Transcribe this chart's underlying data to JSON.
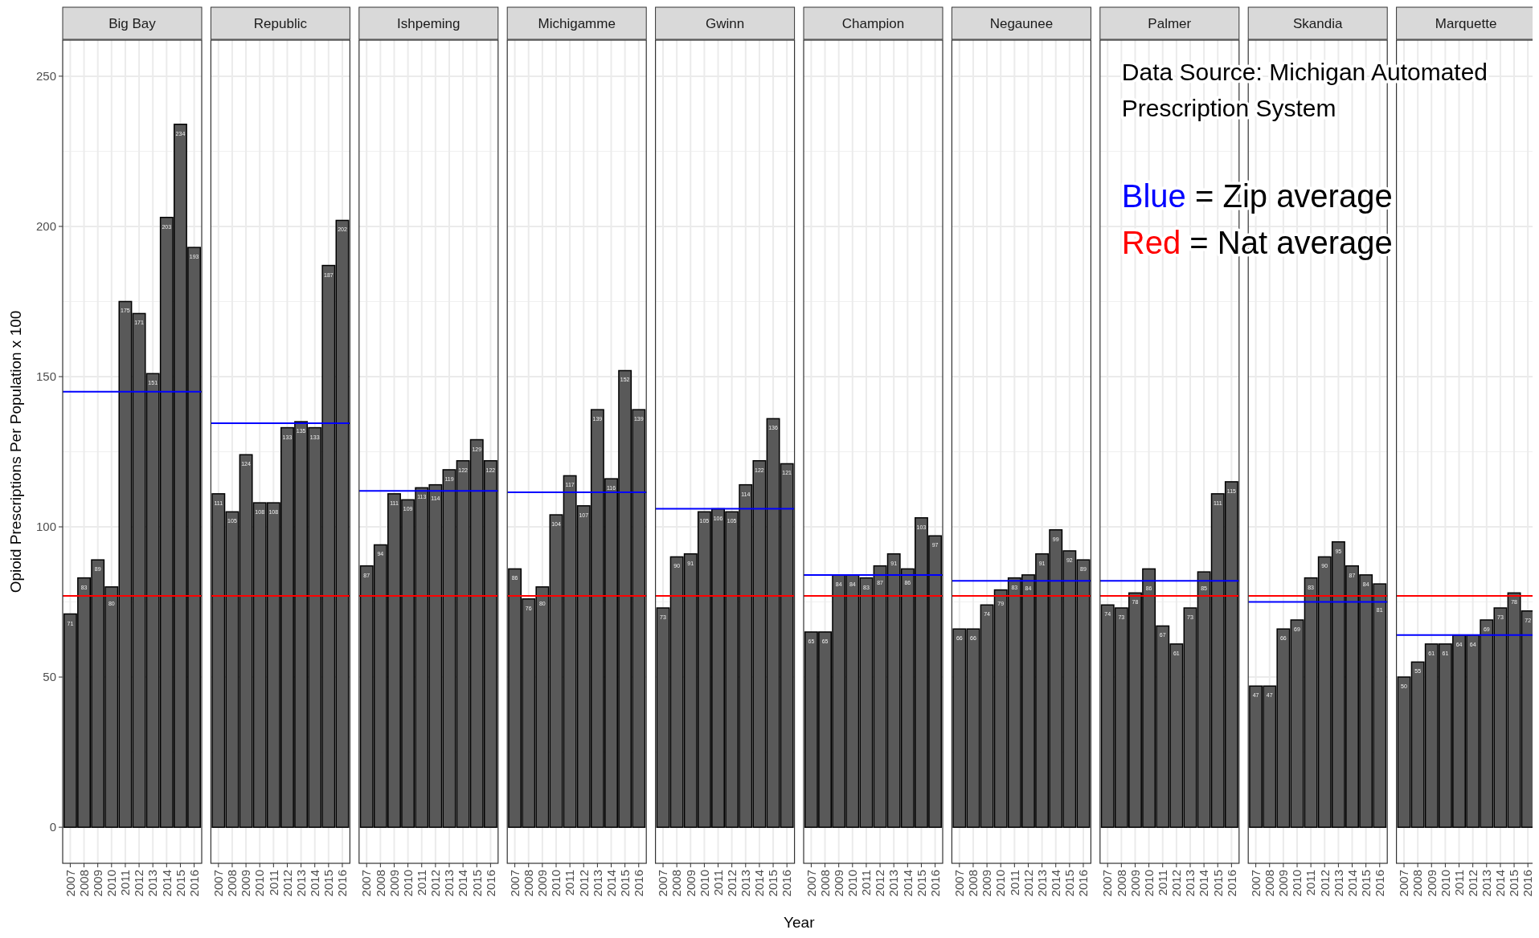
{
  "chart_data": [
    {
      "type": "bar",
      "title": "Big Bay",
      "ylabel": "Opioid Prescriptions Per Population x 100",
      "categories": [
        "2007",
        "2008",
        "2009",
        "2010",
        "2011",
        "2012",
        "2013",
        "2014",
        "2015",
        "2016"
      ],
      "values": [
        71,
        83,
        89,
        80,
        175,
        171,
        151,
        203,
        234,
        193
      ],
      "color": "#595959",
      "ylim": [
        -12,
        262
      ],
      "yticks": [
        0,
        50,
        100,
        150,
        200,
        250
      ],
      "grid": true,
      "data_labels": true,
      "ref_lines": [
        {
          "axis": "y",
          "value": 145,
          "color": "#0000ff"
        },
        {
          "axis": "y",
          "value": 77,
          "color": "#ff0000"
        }
      ]
    },
    {
      "type": "bar",
      "title": "Republic",
      "categories": [
        "2007",
        "2008",
        "2009",
        "2010",
        "2011",
        "2012",
        "2013",
        "2014",
        "2015",
        "2016"
      ],
      "values": [
        111,
        105,
        124,
        108,
        108,
        133,
        135,
        133,
        187,
        202
      ],
      "color": "#595959",
      "ylim": [
        -12,
        262
      ],
      "yticks": [
        0,
        50,
        100,
        150,
        200,
        250
      ],
      "grid": true,
      "data_labels": true,
      "tick_labels": "x",
      "ref_lines": [
        {
          "axis": "y",
          "value": 134.5,
          "color": "#0000ff"
        },
        {
          "axis": "y",
          "value": 77,
          "color": "#ff0000"
        }
      ]
    },
    {
      "type": "bar",
      "title": "Ishpeming",
      "categories": [
        "2007",
        "2008",
        "2009",
        "2010",
        "2011",
        "2012",
        "2013",
        "2014",
        "2015",
        "2016"
      ],
      "values": [
        87,
        94,
        111,
        109,
        113,
        114,
        119,
        122,
        129,
        122
      ],
      "color": "#595959",
      "ylim": [
        -12,
        262
      ],
      "yticks": [
        0,
        50,
        100,
        150,
        200,
        250
      ],
      "grid": true,
      "data_labels": true,
      "tick_labels": "x",
      "ref_lines": [
        {
          "axis": "y",
          "value": 112,
          "color": "#0000ff"
        },
        {
          "axis": "y",
          "value": 77,
          "color": "#ff0000"
        }
      ]
    },
    {
      "type": "bar",
      "title": "Michigamme",
      "categories": [
        "2007",
        "2008",
        "2009",
        "2010",
        "2011",
        "2012",
        "2013",
        "2014",
        "2015",
        "2016"
      ],
      "values": [
        86,
        76,
        80,
        104,
        117,
        107,
        139,
        116,
        152,
        139
      ],
      "color": "#595959",
      "ylim": [
        -12,
        262
      ],
      "yticks": [
        0,
        50,
        100,
        150,
        200,
        250
      ],
      "grid": true,
      "data_labels": true,
      "tick_labels": "x",
      "ref_lines": [
        {
          "axis": "y",
          "value": 111.5,
          "color": "#0000ff"
        },
        {
          "axis": "y",
          "value": 77,
          "color": "#ff0000"
        }
      ]
    },
    {
      "type": "bar",
      "title": "Gwinn",
      "categories": [
        "2007",
        "2008",
        "2009",
        "2010",
        "2011",
        "2012",
        "2013",
        "2014",
        "2015",
        "2016"
      ],
      "values": [
        73,
        90,
        91,
        105,
        106,
        105,
        114,
        122,
        136,
        121
      ],
      "color": "#595959",
      "ylim": [
        -12,
        262
      ],
      "yticks": [
        0,
        50,
        100,
        150,
        200,
        250
      ],
      "grid": true,
      "data_labels": true,
      "tick_labels": "x",
      "ref_lines": [
        {
          "axis": "y",
          "value": 106,
          "color": "#0000ff"
        },
        {
          "axis": "y",
          "value": 77,
          "color": "#ff0000"
        }
      ]
    },
    {
      "type": "bar",
      "title": "Champion",
      "xlabel": "Year",
      "categories": [
        "2007",
        "2008",
        "2009",
        "2010",
        "2011",
        "2012",
        "2013",
        "2014",
        "2015",
        "2016"
      ],
      "values": [
        65,
        65,
        84,
        84,
        83,
        87,
        91,
        86,
        103,
        97
      ],
      "color": "#595959",
      "ylim": [
        -12,
        262
      ],
      "yticks": [
        0,
        50,
        100,
        150,
        200,
        250
      ],
      "grid": true,
      "data_labels": true,
      "tick_labels": "x",
      "ref_lines": [
        {
          "axis": "y",
          "value": 84,
          "color": "#0000ff"
        },
        {
          "axis": "y",
          "value": 77,
          "color": "#ff0000"
        }
      ]
    },
    {
      "type": "bar",
      "title": "Negaunee",
      "categories": [
        "2007",
        "2008",
        "2009",
        "2010",
        "2011",
        "2012",
        "2013",
        "2014",
        "2015",
        "2016"
      ],
      "values": [
        66,
        66,
        74,
        79,
        83,
        84,
        91,
        99,
        92,
        89
      ],
      "color": "#595959",
      "ylim": [
        -12,
        262
      ],
      "yticks": [
        0,
        50,
        100,
        150,
        200,
        250
      ],
      "grid": true,
      "data_labels": true,
      "tick_labels": "x",
      "ref_lines": [
        {
          "axis": "y",
          "value": 82,
          "color": "#0000ff"
        },
        {
          "axis": "y",
          "value": 77,
          "color": "#ff0000"
        }
      ]
    },
    {
      "type": "bar",
      "title": "Palmer",
      "categories": [
        "2007",
        "2008",
        "2009",
        "2010",
        "2011",
        "2012",
        "2013",
        "2014",
        "2015",
        "2016"
      ],
      "values": [
        74,
        73,
        78,
        86,
        67,
        61,
        73,
        85,
        111,
        115
      ],
      "color": "#595959",
      "ylim": [
        -12,
        262
      ],
      "yticks": [
        0,
        50,
        100,
        150,
        200,
        250
      ],
      "grid": true,
      "data_labels": true,
      "tick_labels": "x",
      "ref_lines": [
        {
          "axis": "y",
          "value": 82,
          "color": "#0000ff"
        },
        {
          "axis": "y",
          "value": 77,
          "color": "#ff0000"
        }
      ],
      "annotations": [
        "Data Source: Michigan Automated Prescription System",
        "Blue = Zip average",
        "Red = Nat average"
      ]
    },
    {
      "type": "bar",
      "title": "Skandia",
      "categories": [
        "2007",
        "2008",
        "2009",
        "2010",
        "2011",
        "2012",
        "2013",
        "2014",
        "2015",
        "2016"
      ],
      "values": [
        47,
        47,
        66,
        69,
        83,
        90,
        95,
        87,
        84,
        81
      ],
      "color": "#595959",
      "ylim": [
        -12,
        262
      ],
      "yticks": [
        0,
        50,
        100,
        150,
        200,
        250
      ],
      "grid": true,
      "data_labels": true,
      "tick_labels": "x",
      "ref_lines": [
        {
          "axis": "y",
          "value": 75,
          "color": "#0000ff"
        },
        {
          "axis": "y",
          "value": 77,
          "color": "#ff0000"
        }
      ]
    },
    {
      "type": "bar",
      "title": "Marquette",
      "categories": [
        "2007",
        "2008",
        "2009",
        "2010",
        "2011",
        "2012",
        "2013",
        "2014",
        "2015",
        "2016"
      ],
      "values": [
        50,
        55,
        61,
        61,
        64,
        64,
        69,
        73,
        78,
        72
      ],
      "color": "#595959",
      "ylim": [
        -12,
        262
      ],
      "yticks": [
        0,
        50,
        100,
        150,
        200,
        250
      ],
      "grid": true,
      "data_labels": true,
      "tick_labels": "x",
      "ref_lines": [
        {
          "axis": "y",
          "value": 64,
          "color": "#0000ff"
        },
        {
          "axis": "y",
          "value": 77,
          "color": "#ff0000"
        }
      ]
    }
  ]
}
